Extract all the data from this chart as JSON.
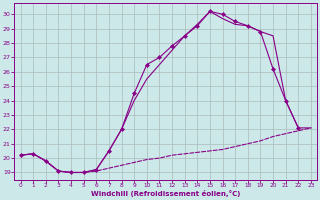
{
  "bg_color": "#cce8e8",
  "line_color": "#880088",
  "grid_color": "#aabbbb",
  "xlabel": "Windchill (Refroidissement éolien,°C)",
  "xticks": [
    0,
    1,
    2,
    3,
    4,
    5,
    6,
    7,
    8,
    9,
    10,
    11,
    12,
    13,
    14,
    15,
    16,
    17,
    18,
    19,
    20,
    21,
    22,
    23
  ],
  "yticks": [
    19,
    20,
    21,
    22,
    23,
    24,
    25,
    26,
    27,
    28,
    29,
    30
  ],
  "xlim": [
    -0.5,
    23.5
  ],
  "ylim": [
    18.5,
    30.8
  ],
  "line_dashed_x": [
    0,
    1,
    2,
    3,
    4,
    5,
    6,
    7,
    8,
    9,
    10,
    11,
    12,
    13,
    14,
    15,
    16,
    17,
    18,
    19,
    20,
    21,
    22,
    23
  ],
  "line_dashed_y": [
    20.2,
    20.3,
    19.8,
    19.1,
    19.0,
    19.0,
    19.1,
    19.3,
    19.5,
    19.7,
    19.9,
    20.0,
    20.2,
    20.3,
    20.4,
    20.5,
    20.6,
    20.8,
    21.0,
    21.2,
    21.5,
    21.7,
    21.9,
    22.1
  ],
  "line_marker_x": [
    0,
    1,
    2,
    3,
    4,
    5,
    6,
    7,
    8,
    9,
    10,
    11,
    12,
    13,
    14,
    15,
    16,
    17,
    18,
    19,
    20,
    21,
    22
  ],
  "line_marker_y": [
    20.2,
    20.3,
    19.8,
    19.1,
    19.0,
    19.0,
    19.2,
    20.5,
    22.0,
    24.5,
    26.5,
    27.0,
    27.8,
    28.5,
    29.2,
    30.2,
    30.0,
    29.5,
    29.2,
    28.8,
    26.2,
    24.0,
    22.1
  ],
  "line_solid_x": [
    0,
    1,
    2,
    3,
    4,
    5,
    6,
    7,
    8,
    9,
    10,
    11,
    12,
    13,
    14,
    15,
    16,
    17,
    18,
    19,
    20,
    21,
    22,
    23
  ],
  "line_solid_y": [
    20.2,
    20.3,
    19.8,
    19.1,
    19.0,
    19.0,
    19.2,
    20.5,
    22.0,
    24.0,
    25.5,
    26.5,
    27.5,
    28.5,
    29.3,
    30.2,
    29.7,
    29.3,
    29.2,
    28.8,
    28.5,
    24.0,
    22.1,
    22.1
  ]
}
